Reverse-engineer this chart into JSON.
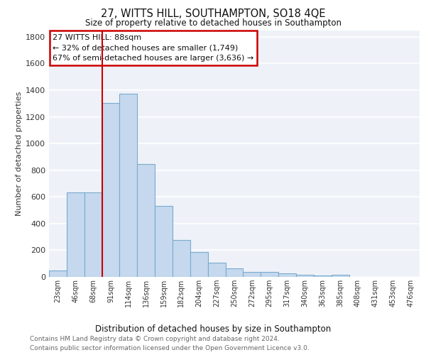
{
  "title": "27, WITTS HILL, SOUTHAMPTON, SO18 4QE",
  "subtitle": "Size of property relative to detached houses in Southampton",
  "xlabel": "Distribution of detached houses by size in Southampton",
  "ylabel": "Number of detached properties",
  "categories": [
    "23sqm",
    "46sqm",
    "68sqm",
    "91sqm",
    "114sqm",
    "136sqm",
    "159sqm",
    "182sqm",
    "204sqm",
    "227sqm",
    "250sqm",
    "272sqm",
    "295sqm",
    "317sqm",
    "340sqm",
    "363sqm",
    "385sqm",
    "408sqm",
    "431sqm",
    "453sqm",
    "476sqm"
  ],
  "values": [
    50,
    635,
    635,
    1305,
    1375,
    848,
    530,
    275,
    185,
    105,
    65,
    38,
    38,
    28,
    15,
    10,
    15,
    0,
    0,
    0,
    0
  ],
  "bar_color": "#c5d8ee",
  "bar_edge_color": "#7aaace",
  "vline_color": "#cc0000",
  "vline_x_index": 3,
  "annotation_line1": "27 WITTS HILL: 88sqm",
  "annotation_line2": "← 32% of detached houses are smaller (1,749)",
  "annotation_line3": "67% of semi-detached houses are larger (3,636) →",
  "annotation_box_edge_color": "#cc0000",
  "ylim": [
    0,
    1850
  ],
  "yticks": [
    0,
    200,
    400,
    600,
    800,
    1000,
    1200,
    1400,
    1600,
    1800
  ],
  "background_color": "#eef2f8",
  "grid_color": "#ffffff",
  "footer_line1": "Contains HM Land Registry data © Crown copyright and database right 2024.",
  "footer_line2": "Contains public sector information licensed under the Open Government Licence v3.0."
}
